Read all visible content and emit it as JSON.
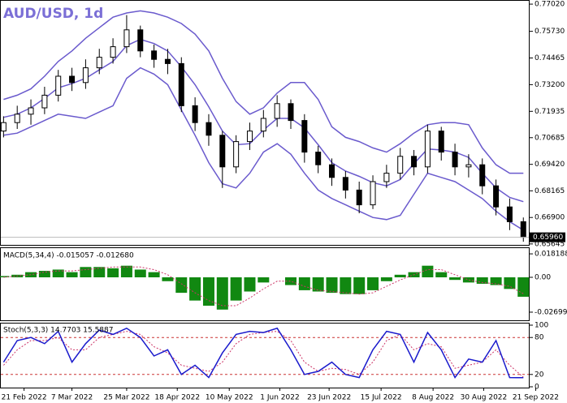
{
  "chart_data": [
    {
      "type": "candlestick",
      "title": "AUD/USD, 1d",
      "xlim": [
        -0.2,
        38.4
      ],
      "xticks": [
        {
          "value": 1.5,
          "label": "21 Feb 2022"
        },
        {
          "value": 5,
          "label": "7 Mar 2022"
        },
        {
          "value": 9,
          "label": "25 Mar 2022"
        },
        {
          "value": 12.7,
          "label": "18 Apr 2022"
        },
        {
          "value": 16.5,
          "label": "10 May 2022"
        },
        {
          "value": 20.2,
          "label": "1 Jun 2022"
        },
        {
          "value": 23.8,
          "label": "23 Jun 2022"
        },
        {
          "value": 27.6,
          "label": "15 Jul 2022"
        },
        {
          "value": 31.4,
          "label": "8 Aug 2022"
        },
        {
          "value": 35.1,
          "label": "30 Aug 2022"
        },
        {
          "value": 38.9,
          "label": "21 Sep 2022"
        }
      ],
      "ylim": [
        0.656,
        0.771
      ],
      "yticks": [
        {
          "value": 0.7702,
          "label": "0.77020"
        },
        {
          "value": 0.7573,
          "label": "0.75730"
        },
        {
          "value": 0.74465,
          "label": "0.74465"
        },
        {
          "value": 0.732,
          "label": "0.73200"
        },
        {
          "value": 0.71935,
          "label": "0.71935"
        },
        {
          "value": 0.70685,
          "label": "0.70685"
        },
        {
          "value": 0.6942,
          "label": "0.69420"
        },
        {
          "value": 0.68165,
          "label": "0.68165"
        },
        {
          "value": 0.669,
          "label": "0.66900"
        },
        {
          "value": 0.65645,
          "label": "0.65645"
        }
      ],
      "last_price": {
        "value": 0.6596,
        "label": "0.65960"
      },
      "open": [
        0.71,
        0.714,
        0.718,
        0.721,
        0.727,
        0.736,
        0.733,
        0.74,
        0.745,
        0.75,
        0.758,
        0.748,
        0.744,
        0.742,
        0.722,
        0.714,
        0.708,
        0.693,
        0.705,
        0.71,
        0.716,
        0.723,
        0.715,
        0.7,
        0.694,
        0.688,
        0.682,
        0.675,
        0.686,
        0.69,
        0.698,
        0.693,
        0.71,
        0.7,
        0.693,
        0.694,
        0.684,
        0.674,
        0.667
      ],
      "high": [
        0.717,
        0.722,
        0.725,
        0.731,
        0.739,
        0.74,
        0.744,
        0.749,
        0.754,
        0.765,
        0.76,
        0.751,
        0.749,
        0.745,
        0.726,
        0.718,
        0.71,
        0.708,
        0.714,
        0.72,
        0.727,
        0.725,
        0.718,
        0.703,
        0.697,
        0.691,
        0.686,
        0.689,
        0.694,
        0.702,
        0.701,
        0.713,
        0.712,
        0.704,
        0.699,
        0.697,
        0.687,
        0.678,
        0.669
      ],
      "low": [
        0.707,
        0.711,
        0.713,
        0.718,
        0.724,
        0.729,
        0.73,
        0.737,
        0.742,
        0.747,
        0.745,
        0.74,
        0.737,
        0.719,
        0.71,
        0.703,
        0.683,
        0.69,
        0.701,
        0.707,
        0.712,
        0.711,
        0.695,
        0.69,
        0.684,
        0.678,
        0.671,
        0.673,
        0.683,
        0.687,
        0.689,
        0.69,
        0.696,
        0.689,
        0.688,
        0.68,
        0.67,
        0.663,
        0.6575
      ],
      "close": [
        0.714,
        0.718,
        0.721,
        0.727,
        0.736,
        0.733,
        0.74,
        0.745,
        0.75,
        0.758,
        0.748,
        0.744,
        0.742,
        0.722,
        0.714,
        0.708,
        0.693,
        0.705,
        0.71,
        0.716,
        0.723,
        0.715,
        0.7,
        0.694,
        0.688,
        0.682,
        0.675,
        0.686,
        0.69,
        0.698,
        0.693,
        0.71,
        0.7,
        0.693,
        0.694,
        0.684,
        0.674,
        0.667,
        0.6596
      ],
      "bands": {
        "color": "#6a5acd",
        "upper": [
          0.725,
          0.727,
          0.73,
          0.736,
          0.743,
          0.748,
          0.754,
          0.759,
          0.764,
          0.766,
          0.767,
          0.766,
          0.764,
          0.761,
          0.756,
          0.748,
          0.735,
          0.724,
          0.718,
          0.721,
          0.728,
          0.733,
          0.733,
          0.725,
          0.712,
          0.707,
          0.705,
          0.702,
          0.7,
          0.704,
          0.709,
          0.713,
          0.714,
          0.714,
          0.713,
          0.702,
          0.694,
          0.69,
          0.69
        ],
        "middle": [
          0.7165,
          0.718,
          0.721,
          0.7255,
          0.7305,
          0.7325,
          0.735,
          0.739,
          0.743,
          0.7505,
          0.7535,
          0.7515,
          0.748,
          0.7405,
          0.732,
          0.7215,
          0.71,
          0.7035,
          0.704,
          0.7105,
          0.716,
          0.716,
          0.7115,
          0.7035,
          0.695,
          0.691,
          0.6885,
          0.6855,
          0.684,
          0.687,
          0.6945,
          0.7015,
          0.701,
          0.7,
          0.6975,
          0.69,
          0.683,
          0.6785,
          0.6765
        ],
        "lower": [
          0.708,
          0.709,
          0.712,
          0.715,
          0.718,
          0.717,
          0.716,
          0.719,
          0.722,
          0.735,
          0.74,
          0.737,
          0.732,
          0.72,
          0.708,
          0.695,
          0.685,
          0.683,
          0.69,
          0.7,
          0.704,
          0.699,
          0.69,
          0.682,
          0.678,
          0.675,
          0.672,
          0.669,
          0.668,
          0.67,
          0.68,
          0.69,
          0.688,
          0.686,
          0.682,
          0.678,
          0.672,
          0.667,
          0.663
        ]
      }
    },
    {
      "type": "macd",
      "title": "MACD(5,34,4) -0.015057 -0.012680",
      "ylim": [
        -0.0333,
        0.022
      ],
      "yticks": [
        0.018188,
        {
          "value": 0,
          "label": "0.00"
        },
        -0.026994
      ],
      "color": "#118811",
      "signal_color": "#cc3366",
      "values": [
        0.001,
        0.002,
        0.004,
        0.005,
        0.006,
        0.004,
        0.008,
        0.008,
        0.007,
        0.009,
        0.006,
        0.004,
        -0.003,
        -0.012,
        -0.018,
        -0.022,
        -0.025,
        -0.018,
        -0.011,
        -0.004,
        0.0,
        -0.006,
        -0.01,
        -0.011,
        -0.012,
        -0.013,
        -0.013,
        -0.01,
        -0.003,
        0.002,
        0.004,
        0.009,
        0.004,
        -0.002,
        -0.004,
        -0.005,
        -0.006,
        -0.009,
        -0.015057
      ],
      "signal": [
        0.0,
        0.001,
        0.002,
        0.004,
        0.005,
        0.005,
        0.006,
        0.007,
        0.008,
        0.008,
        0.008,
        0.006,
        0.002,
        -0.005,
        -0.012,
        -0.018,
        -0.022,
        -0.022,
        -0.016,
        -0.009,
        -0.003,
        -0.003,
        -0.007,
        -0.01,
        -0.011,
        -0.012,
        -0.013,
        -0.012,
        -0.007,
        -0.002,
        0.002,
        0.006,
        0.006,
        0.002,
        -0.002,
        -0.004,
        -0.005,
        -0.007,
        -0.01268
      ]
    },
    {
      "type": "stoch",
      "title": "Stoch(5,3,3) 14.7703 15.5887",
      "ylim": [
        0,
        100
      ],
      "yticks": [
        100,
        80,
        20,
        0
      ],
      "levels": [
        80,
        20
      ],
      "color": "#1a1acc",
      "signal_color": "#cc3366",
      "values": [
        40,
        75,
        80,
        70,
        90,
        40,
        70,
        92,
        85,
        95,
        80,
        50,
        60,
        20,
        35,
        15,
        55,
        85,
        90,
        88,
        95,
        60,
        20,
        25,
        40,
        20,
        15,
        60,
        90,
        85,
        40,
        88,
        60,
        15,
        45,
        40,
        75,
        15,
        14.7703
      ],
      "signal": [
        35,
        60,
        75,
        75,
        80,
        60,
        60,
        80,
        85,
        90,
        85,
        65,
        55,
        35,
        30,
        25,
        40,
        70,
        85,
        88,
        90,
        75,
        40,
        25,
        30,
        28,
        20,
        40,
        75,
        85,
        60,
        70,
        65,
        30,
        35,
        40,
        60,
        35,
        15.5887
      ]
    }
  ]
}
